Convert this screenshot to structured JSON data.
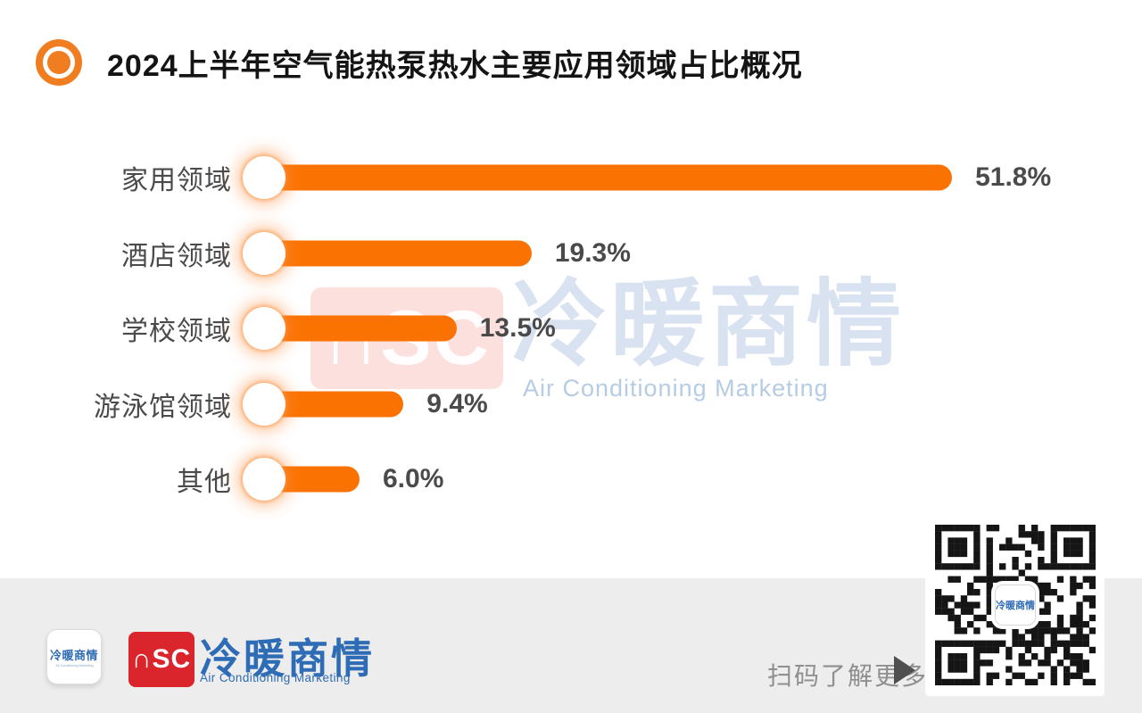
{
  "title": {
    "text": "2024上半年空气能热泵热水主要应用领域占比概况"
  },
  "chart_data": {
    "type": "bar",
    "orientation": "horizontal",
    "title": "2024上半年空气能热泵热水主要应用领域占比概况",
    "categories": [
      "家用领域",
      "酒店领域",
      "学校领域",
      "游泳馆领域",
      "其他"
    ],
    "values": [
      51.8,
      19.3,
      13.5,
      9.4,
      6.0
    ],
    "value_labels": [
      "51.8%",
      "19.3%",
      "13.5%",
      "9.4%",
      "6.0%"
    ],
    "unit": "%",
    "bar_color": "#fa7302",
    "xlim": [
      0,
      60
    ],
    "grid": "off",
    "legend": "none"
  },
  "watermark": {
    "logo_text": "∩SC",
    "cn": "冷暖商情",
    "en": "Air Conditioning Marketing"
  },
  "footer": {
    "app_icon": {
      "cn": "冷暖商情",
      "caption": "Air Conditioning Marketing"
    },
    "brand_logo_text": "∩SC",
    "brand_cn": "冷暖商情",
    "brand_en": "Air Conditioning Marketing",
    "scan_text": "扫码了解更多",
    "qr_center_text": "冷暖商情"
  },
  "colors": {
    "bar_orange": "#fa7302",
    "bullet_orange": "#f07d1f",
    "label_gray": "#4a4a4a",
    "brand_blue": "#2e6cb5",
    "brand_red": "#d9252b",
    "footer_band_gray": "#ededed",
    "scan_text_gray": "#8f8f8f"
  }
}
